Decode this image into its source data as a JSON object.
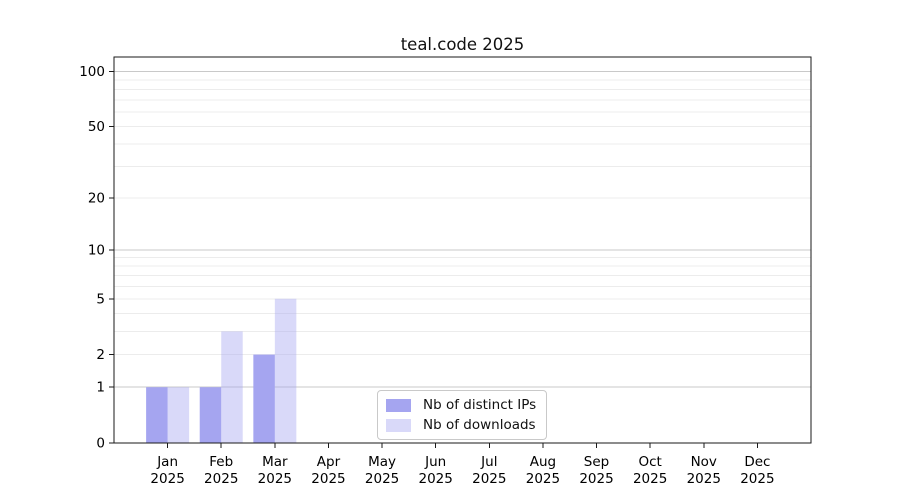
{
  "chart_data": {
    "type": "bar",
    "title": "teal.code 2025",
    "categories": [
      "Jan",
      "Feb",
      "Mar",
      "Apr",
      "May",
      "Jun",
      "Jul",
      "Aug",
      "Sep",
      "Oct",
      "Nov",
      "Dec"
    ],
    "category_year": "2025",
    "series": [
      {
        "name": "Nb of distinct IPs",
        "color": "#a5a5f0",
        "alpha": 1.0,
        "values": [
          1,
          1,
          2,
          0,
          0,
          0,
          0,
          0,
          0,
          0,
          0,
          0
        ]
      },
      {
        "name": "Nb of downloads",
        "color": "#a5a5f0",
        "alpha": 0.42,
        "values": [
          1,
          3,
          5,
          0,
          0,
          0,
          0,
          0,
          0,
          0,
          0,
          0
        ]
      }
    ],
    "yscale": "log1p",
    "ylim": [
      0,
      120
    ],
    "y_ticks": [
      0,
      1,
      2,
      5,
      10,
      20,
      50,
      100
    ],
    "y_major_gridlines": [
      1,
      10,
      100
    ],
    "y_minor_gridlines": [
      2,
      3,
      4,
      5,
      6,
      7,
      8,
      9,
      20,
      30,
      40,
      50,
      60,
      70,
      80,
      90
    ],
    "grid": true,
    "legend_position": "inside-bottom-center",
    "colors": {
      "axis": "#1a1a1a",
      "tick_text": "#000000",
      "major_grid": "#c9c9c9",
      "minor_grid": "#ececec",
      "background": "#ffffff"
    }
  }
}
